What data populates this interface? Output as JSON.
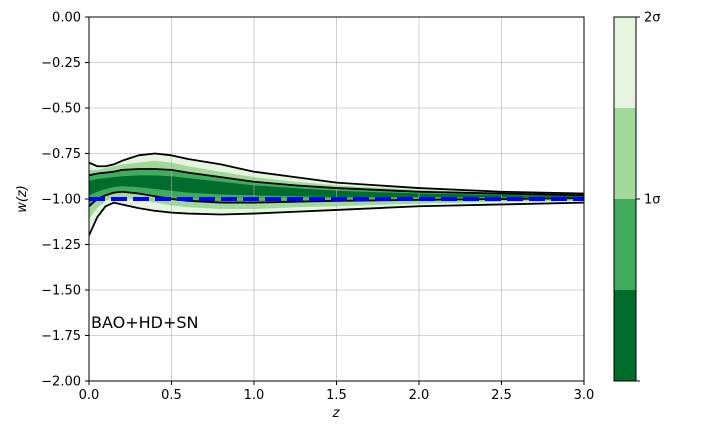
{
  "chart_data": {
    "type": "area",
    "xlabel": "z",
    "ylabel": "w(z)",
    "xlim": [
      0.0,
      3.0
    ],
    "ylim": [
      -2.0,
      0.0
    ],
    "x_ticks": [
      {
        "value": 0.0,
        "label": "0.0"
      },
      {
        "value": 0.5,
        "label": "0.5"
      },
      {
        "value": 1.0,
        "label": "1.0"
      },
      {
        "value": 1.5,
        "label": "1.5"
      },
      {
        "value": 2.0,
        "label": "2.0"
      },
      {
        "value": 2.5,
        "label": "2.5"
      },
      {
        "value": 3.0,
        "label": "3.0"
      }
    ],
    "y_ticks": [
      {
        "value": 0.0,
        "label": "0.00"
      },
      {
        "value": -0.25,
        "label": "−0.25"
      },
      {
        "value": -0.5,
        "label": "−0.50"
      },
      {
        "value": -0.75,
        "label": "−0.75"
      },
      {
        "value": -1.0,
        "label": "−1.00"
      },
      {
        "value": -1.25,
        "label": "−1.25"
      },
      {
        "value": -1.5,
        "label": "−1.50"
      },
      {
        "value": -1.75,
        "label": "−1.75"
      },
      {
        "value": -2.0,
        "label": "−2.00"
      }
    ],
    "grid": true,
    "annotation": "BAO+HD+SN",
    "annotation_position": "lower-left",
    "z": [
      0.0,
      0.05,
      0.1,
      0.15,
      0.2,
      0.3,
      0.4,
      0.5,
      0.6,
      0.8,
      1.0,
      1.25,
      1.5,
      2.0,
      2.5,
      3.0
    ],
    "bands": [
      {
        "name": "2sigma-outer",
        "color": "#e5f5e0",
        "upper": [
          -0.8,
          -0.82,
          -0.82,
          -0.81,
          -0.79,
          -0.76,
          -0.75,
          -0.76,
          -0.78,
          -0.81,
          -0.85,
          -0.88,
          -0.91,
          -0.94,
          -0.96,
          -0.97
        ],
        "lower": [
          -1.2,
          -1.1,
          -1.04,
          -1.02,
          -1.03,
          -1.05,
          -1.065,
          -1.075,
          -1.08,
          -1.085,
          -1.08,
          -1.07,
          -1.06,
          -1.04,
          -1.03,
          -1.02
        ]
      },
      {
        "name": "2sigma-inner",
        "color": "#a1d99b",
        "upper": [
          -0.84,
          -0.84,
          -0.83,
          -0.82,
          -0.81,
          -0.8,
          -0.79,
          -0.8,
          -0.82,
          -0.85,
          -0.88,
          -0.905,
          -0.925,
          -0.95,
          -0.965,
          -0.975
        ],
        "lower": [
          -1.11,
          -1.05,
          -1.01,
          -0.99,
          -0.99,
          -1.0,
          -1.02,
          -1.035,
          -1.045,
          -1.055,
          -1.055,
          -1.045,
          -1.04,
          -1.025,
          -1.015,
          -1.01
        ]
      },
      {
        "name": "1sigma-outer",
        "color": "#41ab5d",
        "upper": [
          -0.87,
          -0.86,
          -0.855,
          -0.85,
          -0.84,
          -0.835,
          -0.835,
          -0.84,
          -0.855,
          -0.88,
          -0.905,
          -0.925,
          -0.94,
          -0.96,
          -0.97,
          -0.98
        ],
        "lower": [
          -1.04,
          -1.0,
          -0.98,
          -0.965,
          -0.96,
          -0.97,
          -0.985,
          -1.0,
          -1.01,
          -1.02,
          -1.02,
          -1.015,
          -1.01,
          -1.005,
          -1.0,
          -0.995
        ]
      },
      {
        "name": "1sigma-inner",
        "color": "#006d2c",
        "upper": [
          -0.9,
          -0.89,
          -0.885,
          -0.88,
          -0.875,
          -0.87,
          -0.87,
          -0.875,
          -0.885,
          -0.905,
          -0.925,
          -0.94,
          -0.955,
          -0.97,
          -0.978,
          -0.985
        ],
        "lower": [
          -0.98,
          -0.96,
          -0.945,
          -0.935,
          -0.93,
          -0.935,
          -0.945,
          -0.955,
          -0.965,
          -0.975,
          -0.98,
          -0.985,
          -0.99,
          -0.99,
          -0.99,
          -0.99
        ]
      }
    ],
    "contours": [
      {
        "name": "2sigma-upper",
        "color": "#000000",
        "values": [
          -0.8,
          -0.82,
          -0.82,
          -0.81,
          -0.79,
          -0.76,
          -0.75,
          -0.76,
          -0.78,
          -0.81,
          -0.85,
          -0.88,
          -0.91,
          -0.94,
          -0.96,
          -0.97
        ]
      },
      {
        "name": "2sigma-lower",
        "color": "#000000",
        "values": [
          -1.2,
          -1.1,
          -1.04,
          -1.02,
          -1.03,
          -1.05,
          -1.065,
          -1.075,
          -1.08,
          -1.085,
          -1.08,
          -1.07,
          -1.06,
          -1.04,
          -1.03,
          -1.02
        ]
      },
      {
        "name": "1sigma-upper",
        "color": "#000000",
        "values": [
          -0.87,
          -0.86,
          -0.855,
          -0.85,
          -0.84,
          -0.835,
          -0.835,
          -0.84,
          -0.855,
          -0.88,
          -0.905,
          -0.925,
          -0.94,
          -0.96,
          -0.97,
          -0.98
        ]
      },
      {
        "name": "1sigma-lower",
        "color": "#000000",
        "values": [
          -1.04,
          -1.0,
          -0.98,
          -0.965,
          -0.96,
          -0.97,
          -0.985,
          -1.0,
          -1.01,
          -1.02,
          -1.02,
          -1.015,
          -1.01,
          -1.005,
          -1.0,
          -0.995
        ]
      }
    ],
    "reference_line": {
      "name": "lambda-cdm",
      "y": -1.0,
      "color": "#0000ff",
      "style": "dashed"
    },
    "colorbar": {
      "segments": [
        "#006d2c",
        "#41ab5d",
        "#a1d99b",
        "#e5f5e0"
      ],
      "ticks": [
        {
          "position": 0.5,
          "label": "1σ"
        },
        {
          "position": 1.0,
          "label": "2σ"
        }
      ]
    }
  }
}
